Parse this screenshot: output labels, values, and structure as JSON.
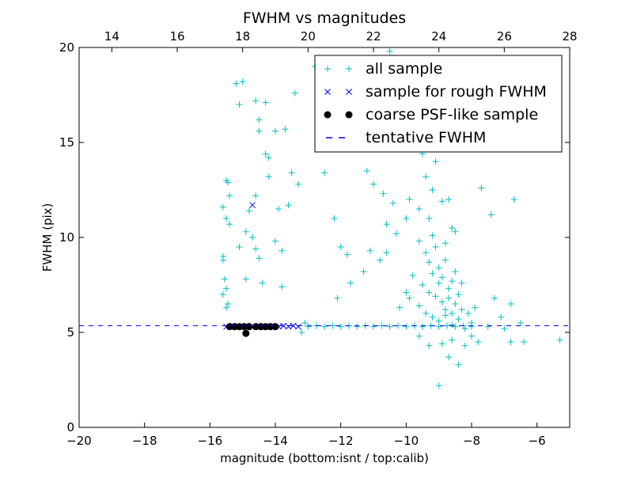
{
  "chart_data": {
    "type": "scatter",
    "title": "FWHM vs magnitudes",
    "xlabel": "magnitude (bottom:isnt / top:calib)",
    "ylabel": "FWHM (pix)",
    "xlim": [
      -20,
      -5
    ],
    "ylim": [
      0,
      20
    ],
    "top_xlim": [
      13,
      28
    ],
    "xticks": [
      -20,
      -18,
      -16,
      -14,
      -12,
      -10,
      -8,
      -6
    ],
    "xtick_labels": [
      "−20",
      "−18",
      "−16",
      "−14",
      "−12",
      "−10",
      "−8",
      "−6"
    ],
    "top_xticks": [
      14,
      16,
      18,
      20,
      22,
      24,
      26,
      28
    ],
    "top_xtick_labels": [
      "14",
      "16",
      "18",
      "20",
      "22",
      "24",
      "26",
      "28"
    ],
    "yticks": [
      0,
      5,
      10,
      15,
      20
    ],
    "ytick_labels": [
      "0",
      "5",
      "10",
      "15",
      "20"
    ],
    "grid": false,
    "legend_position": "top-right",
    "legend": [
      "all sample",
      "sample for rough FWHM",
      "coarse PSF-like sample",
      "tentative FWHM"
    ],
    "colors": {
      "all": "#00bfbf",
      "rough": "#0000ff",
      "psf": "#000000",
      "line": "#0000ff"
    },
    "tentative_fwhm": 5.35,
    "series": [
      {
        "name": "all sample",
        "marker": "+",
        "points": [
          [
            -15.6,
            11.6
          ],
          [
            -15.5,
            13.0
          ],
          [
            -15.45,
            12.9
          ],
          [
            -15.4,
            12.2
          ],
          [
            -15.5,
            11.0
          ],
          [
            -15.4,
            10.7
          ],
          [
            -15.6,
            8.8
          ],
          [
            -15.6,
            9.0
          ],
          [
            -15.55,
            7.8
          ],
          [
            -15.5,
            7.3
          ],
          [
            -15.6,
            7.0
          ],
          [
            -15.5,
            6.3
          ],
          [
            -15.45,
            6.5
          ],
          [
            -15.2,
            18.1
          ],
          [
            -15.0,
            18.2
          ],
          [
            -15.1,
            17.0
          ],
          [
            -14.6,
            17.2
          ],
          [
            -14.3,
            17.1
          ],
          [
            -14.5,
            16.2
          ],
          [
            -13.7,
            15.7
          ],
          [
            -14.0,
            15.6
          ],
          [
            -14.5,
            15.6
          ],
          [
            -14.2,
            14.2
          ],
          [
            -14.3,
            14.4
          ],
          [
            -13.5,
            13.4
          ],
          [
            -13.3,
            12.8
          ],
          [
            -14.2,
            13.2
          ],
          [
            -14.6,
            12.2
          ],
          [
            -14.8,
            11.4
          ],
          [
            -14.9,
            10.3
          ],
          [
            -14.7,
            10.0
          ],
          [
            -14.6,
            9.4
          ],
          [
            -14.5,
            8.9
          ],
          [
            -14.0,
            9.8
          ],
          [
            -13.8,
            9.3
          ],
          [
            -13.6,
            11.7
          ],
          [
            -13.9,
            11.5
          ],
          [
            -15.1,
            9.5
          ],
          [
            -14.9,
            7.8
          ],
          [
            -14.4,
            7.6
          ],
          [
            -13.8,
            7.4
          ],
          [
            -13.4,
            17.6
          ],
          [
            -12.5,
            13.4
          ],
          [
            -12.8,
            19.0
          ],
          [
            -12.2,
            11.0
          ],
          [
            -12.0,
            9.5
          ],
          [
            -11.8,
            9.1
          ],
          [
            -11.3,
            8.2
          ],
          [
            -11.1,
            9.3
          ],
          [
            -11.7,
            7.6
          ],
          [
            -12.1,
            6.8
          ],
          [
            -11.2,
            13.5
          ],
          [
            -11.0,
            12.8
          ],
          [
            -10.7,
            12.3
          ],
          [
            -10.4,
            11.8
          ],
          [
            -10.6,
            10.7
          ],
          [
            -10.3,
            10.2
          ],
          [
            -10.6,
            9.2
          ],
          [
            -10.8,
            8.8
          ],
          [
            -10.1,
            19.3
          ],
          [
            -10.5,
            19.8
          ],
          [
            -10.2,
            16.0
          ],
          [
            -9.8,
            18.9
          ],
          [
            -9.5,
            19.0
          ],
          [
            -9.4,
            18.2
          ],
          [
            -9.7,
            15.9
          ],
          [
            -9.5,
            14.4
          ],
          [
            -9.1,
            14.0
          ],
          [
            -9.4,
            13.2
          ],
          [
            -9.2,
            12.5
          ],
          [
            -9.9,
            12.0
          ],
          [
            -10.0,
            11.0
          ],
          [
            -9.6,
            11.5
          ],
          [
            -9.3,
            11.0
          ],
          [
            -8.9,
            11.9
          ],
          [
            -8.7,
            12.0
          ],
          [
            -8.6,
            10.5
          ],
          [
            -8.5,
            10.3
          ],
          [
            -7.7,
            12.6
          ],
          [
            -7.4,
            11.2
          ],
          [
            -6.7,
            12.0
          ],
          [
            -9.6,
            9.8
          ],
          [
            -9.4,
            9.2
          ],
          [
            -9.3,
            8.7
          ],
          [
            -9.2,
            8.1
          ],
          [
            -9.1,
            9.5
          ],
          [
            -9.0,
            8.4
          ],
          [
            -8.9,
            7.9
          ],
          [
            -8.8,
            8.8
          ],
          [
            -8.7,
            7.3
          ],
          [
            -8.6,
            7.7
          ],
          [
            -9.5,
            7.5
          ],
          [
            -9.3,
            7.1
          ],
          [
            -9.1,
            6.9
          ],
          [
            -9.0,
            7.6
          ],
          [
            -8.9,
            6.6
          ],
          [
            -8.8,
            6.2
          ],
          [
            -8.7,
            6.8
          ],
          [
            -8.6,
            6.0
          ],
          [
            -8.5,
            6.5
          ],
          [
            -8.4,
            7.0
          ],
          [
            -9.6,
            6.4
          ],
          [
            -9.4,
            6.0
          ],
          [
            -9.2,
            5.8
          ],
          [
            -9.0,
            5.6
          ],
          [
            -8.8,
            5.9
          ],
          [
            -8.6,
            5.4
          ],
          [
            -8.4,
            5.7
          ],
          [
            -8.3,
            6.2
          ],
          [
            -8.2,
            5.2
          ],
          [
            -8.1,
            6.0
          ],
          [
            -8.0,
            5.5
          ],
          [
            -7.9,
            6.3
          ],
          [
            -8.5,
            8.2
          ],
          [
            -8.3,
            7.6
          ],
          [
            -8.8,
            9.7
          ],
          [
            -9.2,
            10.1
          ],
          [
            -9.8,
            8.0
          ],
          [
            -10.0,
            7.1
          ],
          [
            -10.2,
            6.3
          ],
          [
            -9.9,
            6.8
          ],
          [
            -9.0,
            2.2
          ],
          [
            -8.4,
            3.3
          ],
          [
            -8.7,
            3.7
          ],
          [
            -9.3,
            4.3
          ],
          [
            -8.9,
            4.4
          ],
          [
            -8.2,
            4.3
          ],
          [
            -7.8,
            4.5
          ],
          [
            -8.6,
            4.6
          ],
          [
            -8.0,
            4.8
          ],
          [
            -9.6,
            4.8
          ],
          [
            -7.3,
            6.8
          ],
          [
            -7.1,
            5.8
          ],
          [
            -6.8,
            6.5
          ],
          [
            -6.5,
            5.5
          ],
          [
            -6.8,
            4.5
          ],
          [
            -6.4,
            4.5
          ],
          [
            -5.3,
            4.6
          ],
          [
            -7.5,
            5.3
          ],
          [
            -7.0,
            5.2
          ],
          [
            -13.0,
            5.3
          ],
          [
            -12.75,
            5.35
          ],
          [
            -12.5,
            5.3
          ],
          [
            -12.25,
            5.35
          ],
          [
            -12.0,
            5.3
          ],
          [
            -11.75,
            5.35
          ],
          [
            -11.5,
            5.3
          ],
          [
            -11.25,
            5.35
          ],
          [
            -11.0,
            5.3
          ],
          [
            -10.75,
            5.35
          ],
          [
            -10.5,
            5.3
          ],
          [
            -10.25,
            5.35
          ],
          [
            -10.0,
            5.3
          ],
          [
            -9.75,
            5.35
          ],
          [
            -9.5,
            5.3
          ],
          [
            -9.25,
            5.35
          ],
          [
            -9.0,
            5.3
          ],
          [
            -8.75,
            5.35
          ],
          [
            -8.5,
            5.3
          ],
          [
            -8.25,
            5.35
          ],
          [
            -8.0,
            5.3
          ],
          [
            -13.2,
            5.0
          ],
          [
            -13.1,
            5.5
          ]
        ]
      },
      {
        "name": "sample for rough FWHM",
        "marker": "x",
        "points": [
          [
            -15.5,
            5.3
          ],
          [
            -15.3,
            5.35
          ],
          [
            -15.1,
            5.3
          ],
          [
            -14.9,
            5.35
          ],
          [
            -14.7,
            5.3
          ],
          [
            -14.5,
            5.35
          ],
          [
            -14.3,
            5.3
          ],
          [
            -14.1,
            5.35
          ],
          [
            -13.9,
            5.3
          ],
          [
            -13.75,
            5.35
          ],
          [
            -13.6,
            5.3
          ],
          [
            -13.45,
            5.35
          ],
          [
            -13.3,
            5.3
          ],
          [
            -14.7,
            11.7
          ]
        ]
      },
      {
        "name": "coarse PSF-like sample",
        "marker": "o",
        "points": [
          [
            -15.4,
            5.3
          ],
          [
            -15.25,
            5.3
          ],
          [
            -15.1,
            5.3
          ],
          [
            -14.95,
            5.3
          ],
          [
            -14.8,
            5.3
          ],
          [
            -14.6,
            5.3
          ],
          [
            -14.45,
            5.3
          ],
          [
            -14.3,
            5.3
          ],
          [
            -14.15,
            5.3
          ],
          [
            -14.0,
            5.3
          ],
          [
            -14.9,
            4.95
          ]
        ]
      }
    ]
  }
}
